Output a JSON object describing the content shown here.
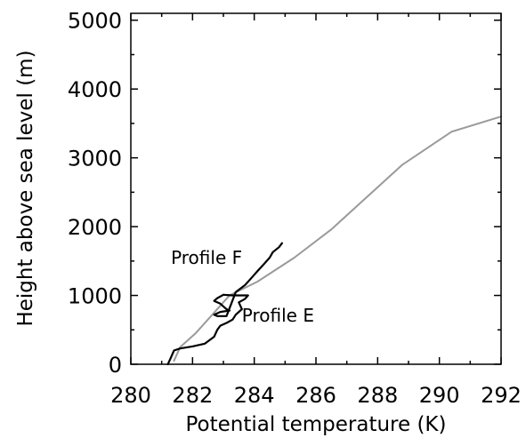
{
  "chart_data": {
    "type": "line",
    "title": "",
    "xlabel": "Potential temperature (K)",
    "ylabel": "Height above sea level (m)",
    "xlim": [
      280,
      292
    ],
    "ylim": [
      0,
      5100
    ],
    "x_ticks": [
      280,
      282,
      284,
      286,
      288,
      290,
      292
    ],
    "y_ticks": [
      0,
      1000,
      2000,
      3000,
      4000,
      5000
    ],
    "x_tick_labels": [
      "280",
      "282",
      "284",
      "286",
      "288",
      "290",
      "292"
    ],
    "y_tick_labels": [
      "0",
      "1000",
      "2000",
      "3000",
      "4000",
      "5000"
    ],
    "grid": false,
    "legend": "none",
    "series": [
      {
        "color": "#9a9a9a",
        "x": [
          281.4,
          281.6,
          282.1,
          282.6,
          283.2,
          284.1,
          285.3,
          286.5,
          287.7,
          288.8,
          290.4,
          292.0
        ],
        "y": [
          50,
          250,
          450,
          700,
          1000,
          1200,
          1550,
          1960,
          2450,
          2900,
          3380,
          3600
        ]
      },
      {
        "color": "#000000",
        "x": [
          281.2,
          281.3,
          281.4,
          281.6,
          282.0,
          282.4,
          282.7,
          282.8,
          282.9,
          283.1,
          283.3,
          283.4,
          283.6,
          283.5,
          283.7,
          283.8,
          283.6,
          283.3,
          283.0
        ],
        "y": [
          0,
          100,
          200,
          230,
          260,
          300,
          400,
          500,
          560,
          600,
          650,
          720,
          800,
          900,
          950,
          1000,
          1000,
          1000,
          1010
        ]
      },
      {
        "color": "#000000",
        "x": [
          283.0,
          282.8,
          282.7,
          282.9,
          283.0,
          283.1,
          283.2,
          282.9,
          282.7,
          282.8,
          283.1,
          283.4,
          283.7,
          283.9,
          284.1,
          284.3,
          284.5,
          284.6,
          284.8,
          284.9
        ],
        "y": [
          1010,
          960,
          920,
          880,
          840,
          800,
          780,
          760,
          720,
          700,
          700,
          1050,
          1150,
          1250,
          1350,
          1450,
          1550,
          1630,
          1700,
          1760
        ]
      }
    ],
    "annotations": [
      {
        "text": "Profile F",
        "x": 281.3,
        "y": 1460
      },
      {
        "text": "Profile E",
        "x": 283.6,
        "y": 620
      }
    ]
  }
}
